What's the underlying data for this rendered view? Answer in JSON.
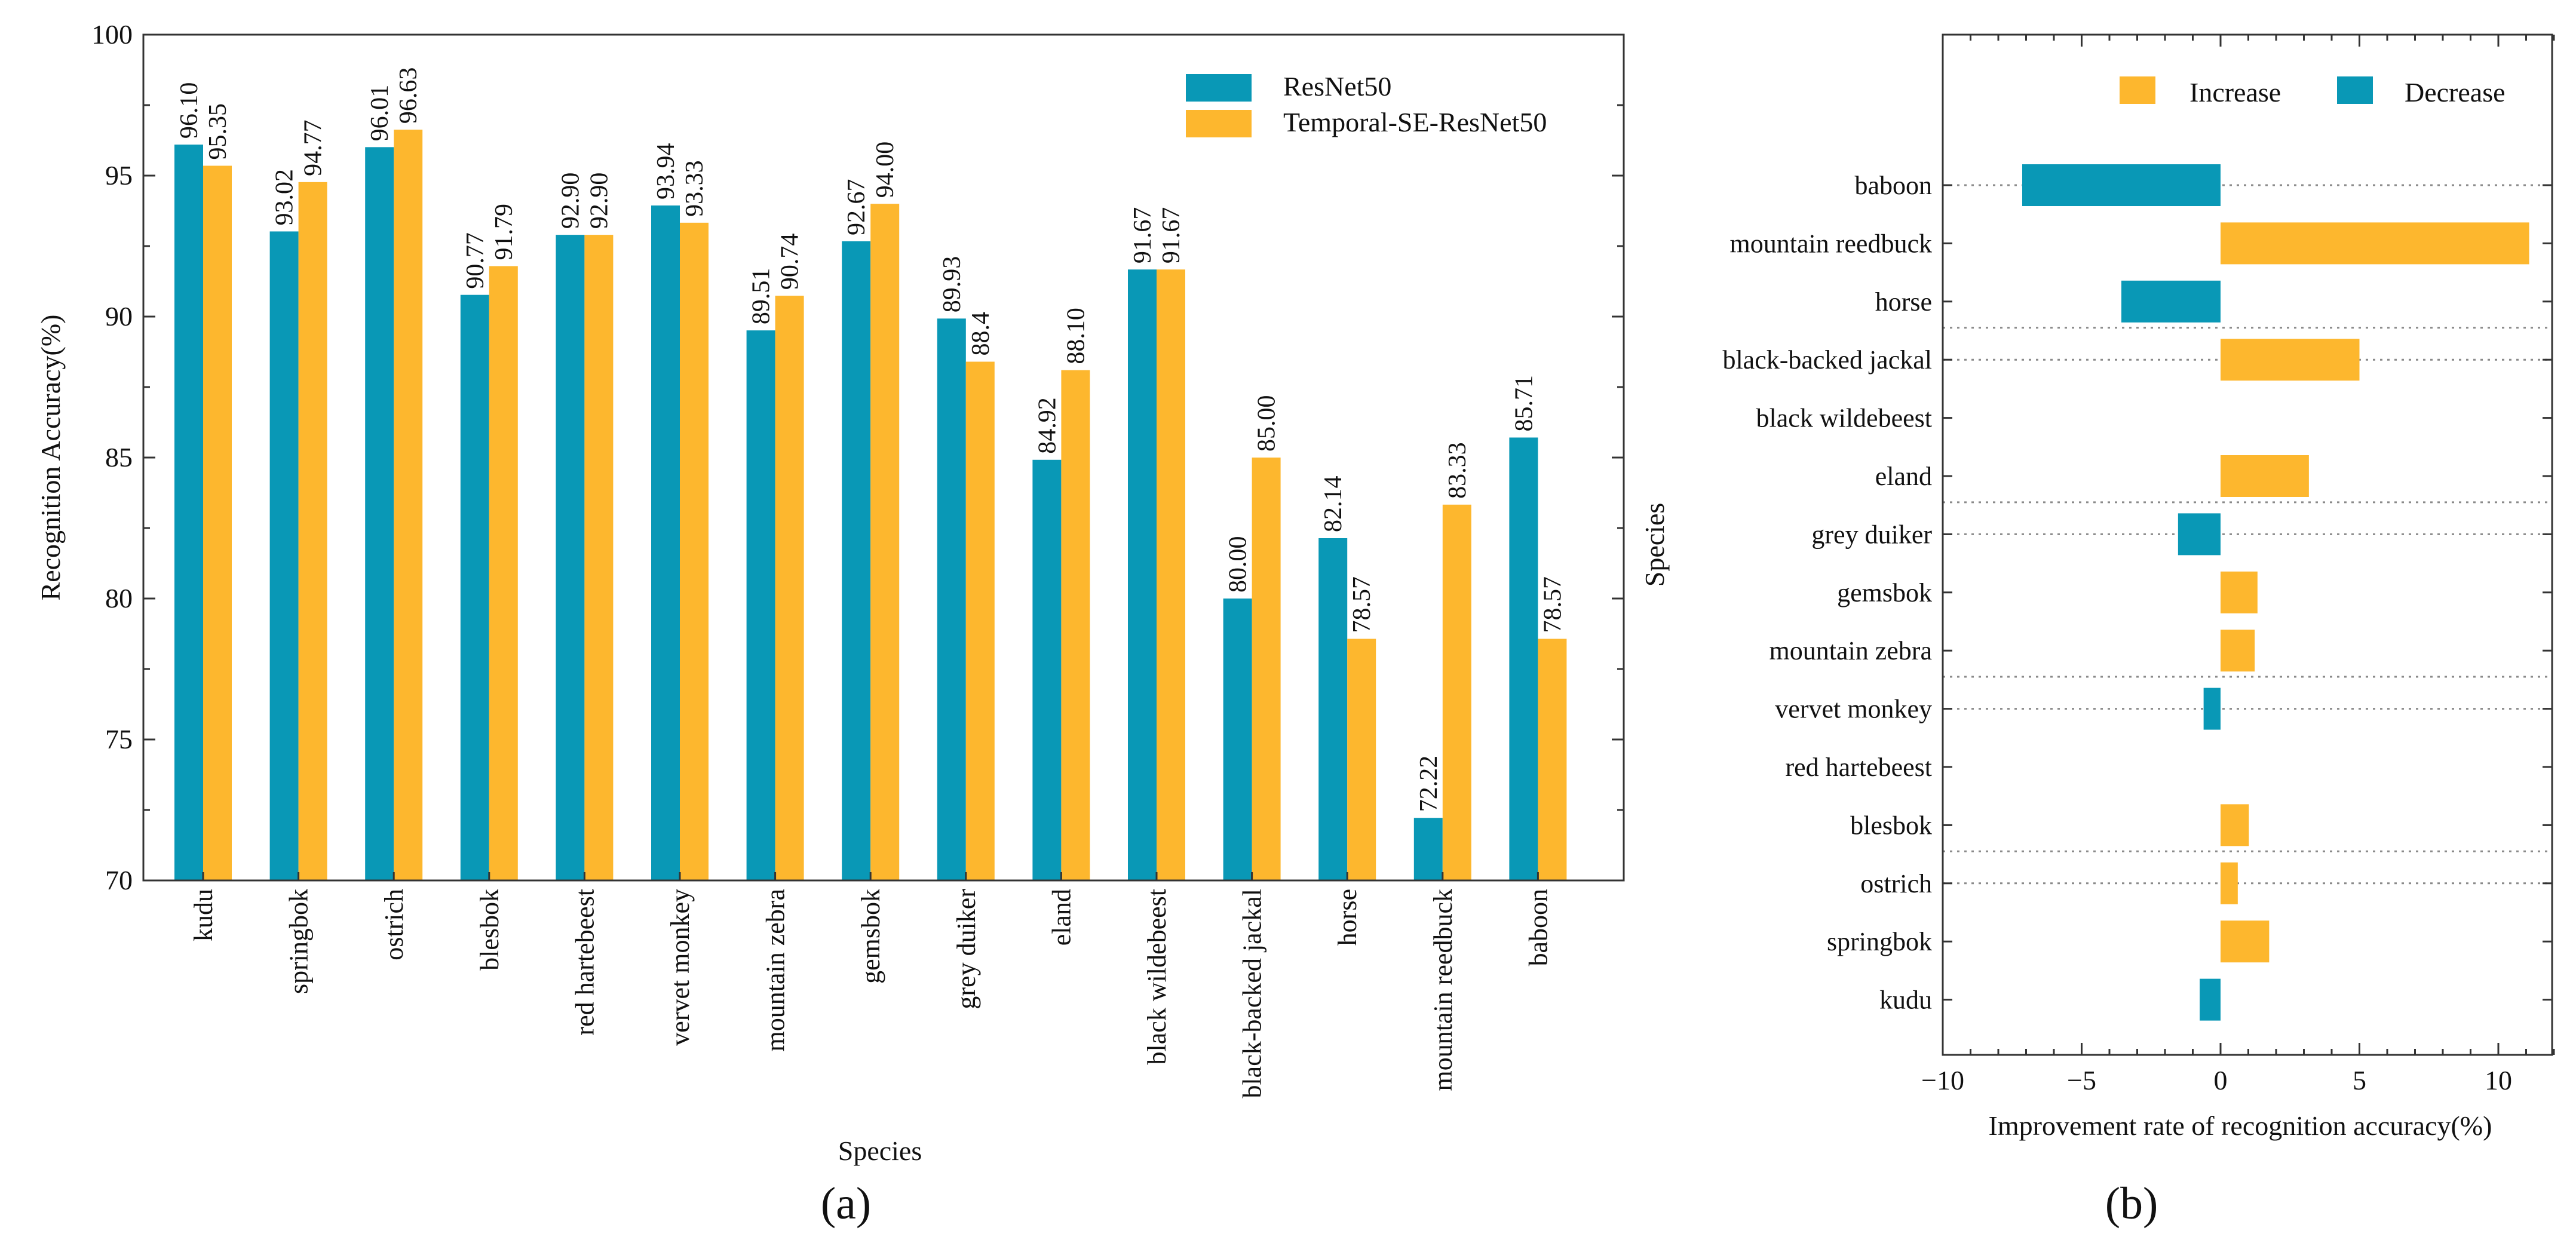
{
  "colors": {
    "resnet": "#0998B6",
    "temporal": "#FDB72E",
    "increase": "#FDB72E",
    "decrease": "#0998B6"
  },
  "chart_data": [
    {
      "type": "bar",
      "panel_label": "(a)",
      "xlabel": "Species",
      "ylabel": "Recognition Accuracy(%)",
      "ylim": [
        70,
        100
      ],
      "yticks": [
        "70",
        "75",
        "80",
        "85",
        "90",
        "95",
        "100"
      ],
      "legend_position": "top-right",
      "categories": [
        "kudu",
        "springbok",
        "ostrich",
        "blesbok",
        "red hartebeest",
        "vervet monkey",
        "mountain zebra",
        "gemsbok",
        "grey duiker",
        "eland",
        "black wildebeest",
        "black-backed jackal",
        "horse",
        "mountain reedbuck",
        "baboon"
      ],
      "series": [
        {
          "name": "ResNet50",
          "values": [
            96.1,
            93.02,
            96.01,
            90.77,
            92.9,
            93.94,
            89.51,
            92.67,
            89.93,
            84.92,
            91.67,
            80.0,
            82.14,
            72.22,
            85.71
          ],
          "labels": [
            "96.10",
            "93.02",
            "96.01",
            "90.77",
            "92.90",
            "93.94",
            "89.51",
            "92.67",
            "89.93",
            "84.92",
            "91.67",
            "80.00",
            "82.14",
            "72.22",
            "85.71"
          ]
        },
        {
          "name": "Temporal-SE-ResNet50",
          "values": [
            95.35,
            94.77,
            96.63,
            91.79,
            92.9,
            93.33,
            90.74,
            94.0,
            88.4,
            88.1,
            91.67,
            85.0,
            78.57,
            83.33,
            78.57
          ],
          "labels": [
            "95.35",
            "94.77",
            "96.63",
            "91.79",
            "92.90",
            "93.33",
            "90.74",
            "94.00",
            "88.4",
            "88.10",
            "91.67",
            "85.00",
            "78.57",
            "83.33",
            "78.57"
          ]
        }
      ]
    },
    {
      "type": "bar",
      "orientation": "horizontal",
      "panel_label": "(b)",
      "xlabel": "Improvement rate of recognition accuracy(%)",
      "ylabel": "Species",
      "xlim": [
        -10,
        12
      ],
      "xticks": [
        -10,
        -5,
        0,
        5,
        10
      ],
      "xtick_labels": [
        "−10",
        "−5",
        "0",
        "5",
        "10"
      ],
      "legend": [
        "Increase",
        "Decrease"
      ],
      "legend_position": "top",
      "categories": [
        "baboon",
        "mountain reedbuck",
        "horse",
        "black-backed jackal",
        "black wildebeest",
        "eland",
        "grey duiker",
        "gemsbok",
        "mountain zebra",
        "vervet monkey",
        "red hartebeest",
        "blesbok",
        "ostrich",
        "springbok",
        "kudu"
      ],
      "values": [
        -7.14,
        11.11,
        -3.57,
        5.0,
        0.0,
        3.18,
        -1.53,
        1.33,
        1.23,
        -0.61,
        0.0,
        1.02,
        0.62,
        1.75,
        -0.75
      ]
    }
  ]
}
